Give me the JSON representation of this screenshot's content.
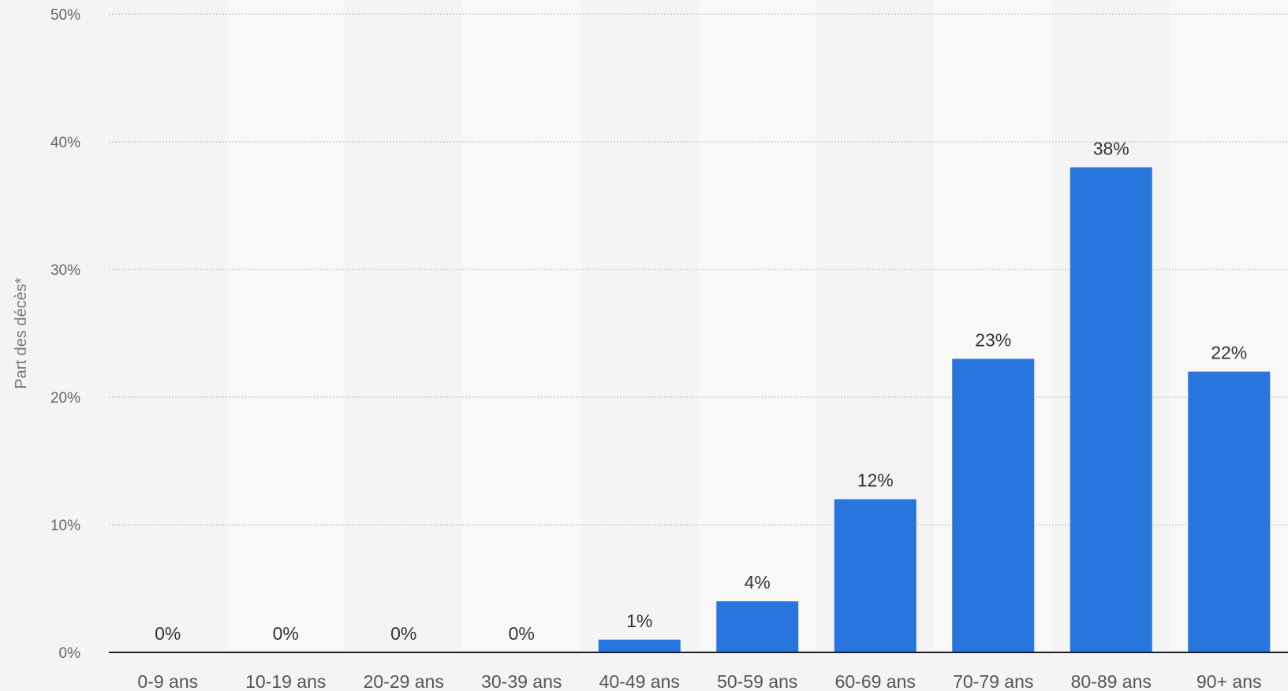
{
  "chart_data": {
    "type": "bar",
    "title": "",
    "xlabel": "",
    "ylabel": "Part des décès*",
    "categories": [
      "0-9 ans",
      "10-19 ans",
      "20-29 ans",
      "30-39 ans",
      "40-49 ans",
      "50-59 ans",
      "60-69 ans",
      "70-79 ans",
      "80-89 ans",
      "90+ ans"
    ],
    "values": [
      0,
      0,
      0,
      0,
      1,
      4,
      12,
      23,
      38,
      22
    ],
    "value_labels": [
      "0%",
      "0%",
      "0%",
      "0%",
      "1%",
      "4%",
      "12%",
      "23%",
      "38%",
      "22%"
    ],
    "ylim": [
      0,
      50
    ],
    "yticks": [
      0,
      10,
      20,
      30,
      40,
      50
    ],
    "ytick_labels": [
      "0%",
      "10%",
      "20%",
      "30%",
      "40%",
      "50%"
    ],
    "grid": true,
    "legend": "none",
    "colors": {
      "bar": "#2876dd",
      "band_light": "#f8f8f8",
      "band_dark": "#f4f4f4",
      "grid": "#c8c8c8",
      "axis": "#222222"
    }
  }
}
